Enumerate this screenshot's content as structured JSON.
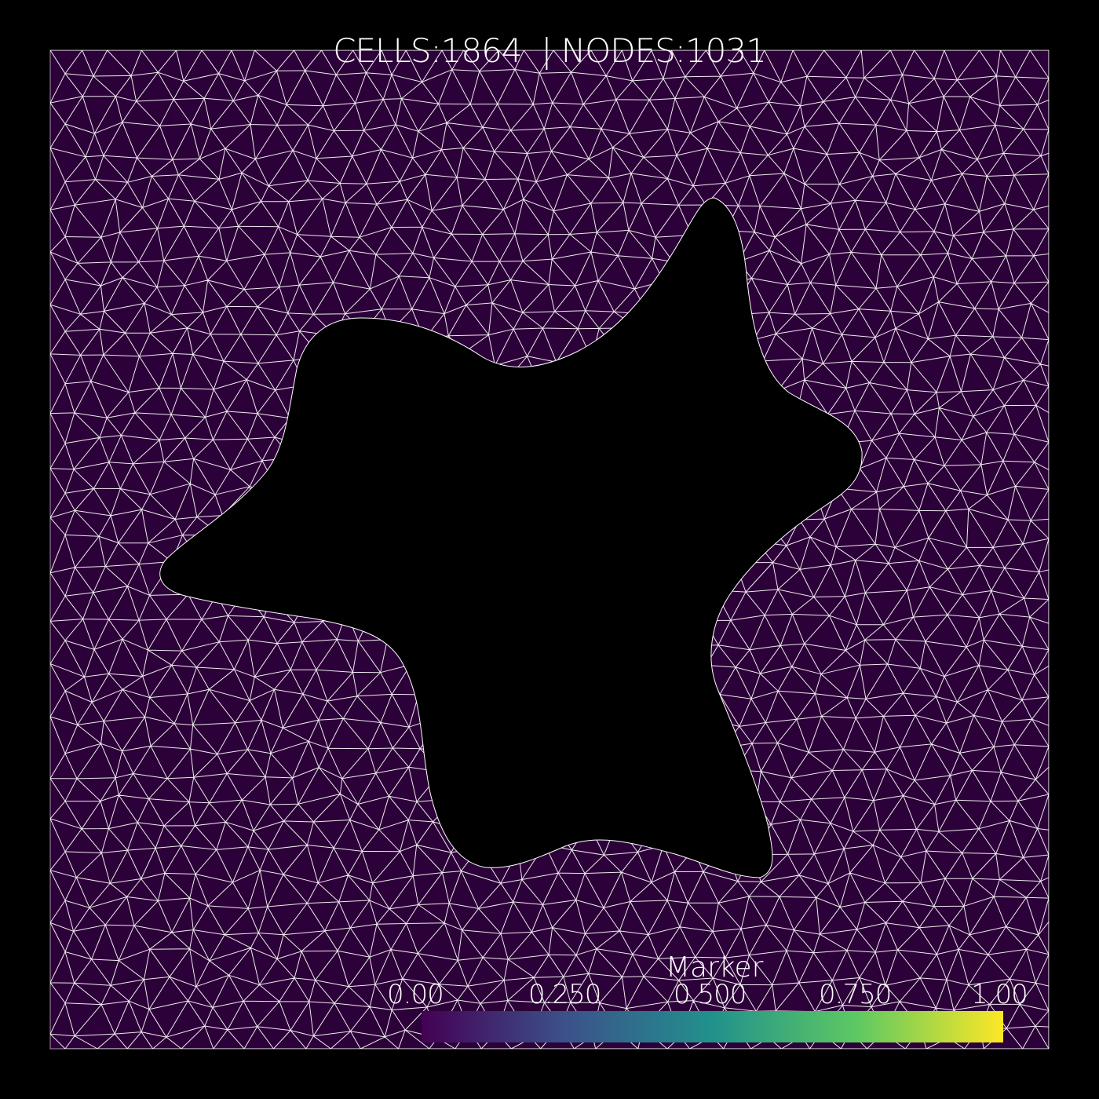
{
  "header": {
    "title": "CELLS:1864  | NODES:1031"
  },
  "mesh": {
    "cells": 1864,
    "nodes": 1031,
    "fill_color": "#2c0038",
    "edge_color": "#ffffff",
    "background": "#000000",
    "hole_color": "#000000",
    "hole_shape": "star-like obstacle with six smooth lobes"
  },
  "colorbar": {
    "title": "Marker",
    "ticks": [
      "0.00",
      "0.250",
      "0.500",
      "0.750",
      "1.00"
    ],
    "colormap": "viridis",
    "range": [
      0,
      1
    ],
    "stops": [
      "#440154",
      "#3b528b",
      "#21918c",
      "#5ec962",
      "#fde725"
    ]
  }
}
